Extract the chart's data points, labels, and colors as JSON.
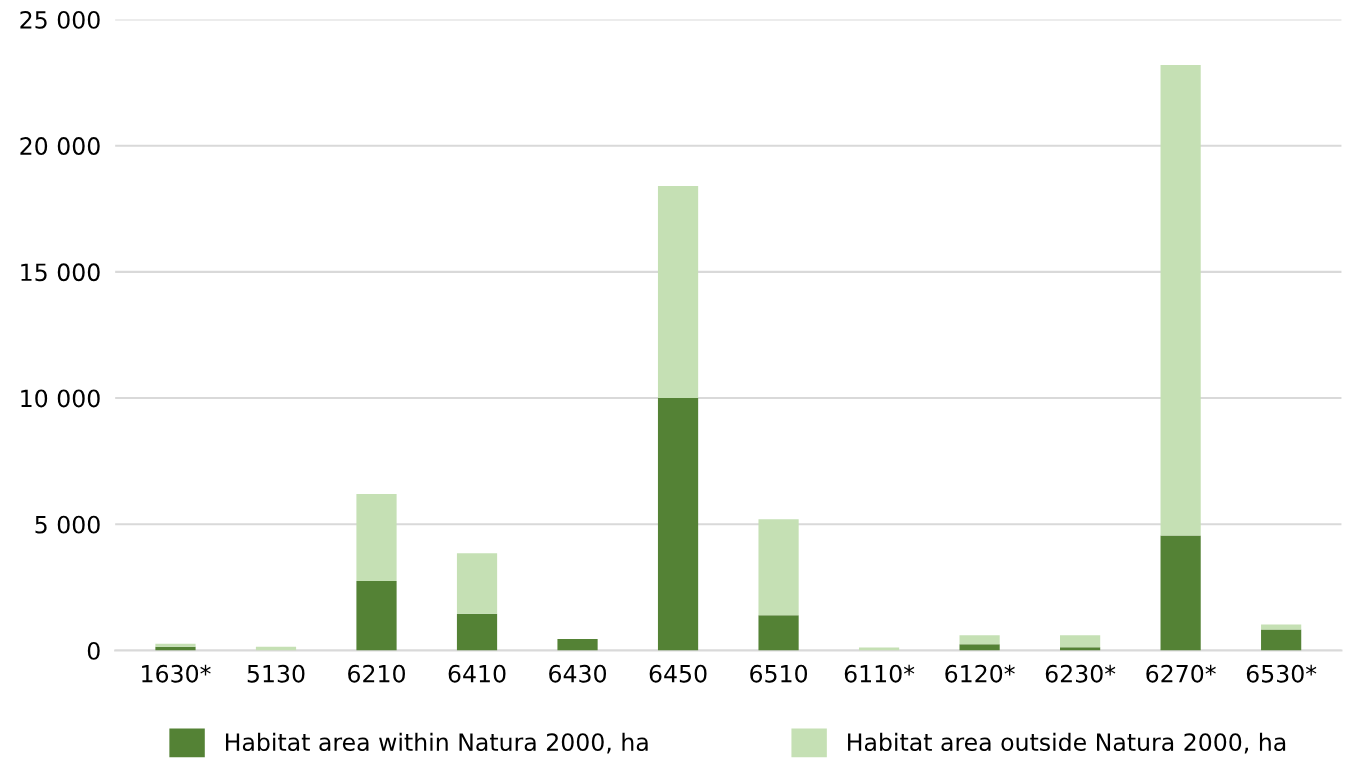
{
  "chart_data": {
    "type": "bar",
    "stacked": true,
    "categories": [
      "1630*",
      "5130",
      "6210",
      "6410",
      "6430",
      "6450",
      "6510",
      "6110*",
      "6120*",
      "6230*",
      "6270*",
      "6530*"
    ],
    "series": [
      {
        "name": "Habitat area within Natura 2000, ha",
        "color": "#548235",
        "values": [
          150,
          0,
          2750,
          1450,
          450,
          10000,
          1400,
          0,
          250,
          130,
          4550,
          830
        ]
      },
      {
        "name": "Habitat area outside Natura 2000, ha",
        "color": "#c5e0b4",
        "values": [
          120,
          150,
          3450,
          2400,
          0,
          8400,
          3800,
          120,
          350,
          470,
          18650,
          200
        ]
      }
    ],
    "ylim": [
      0,
      25000
    ],
    "yticks": [
      {
        "value": 0,
        "label": "0"
      },
      {
        "value": 5000,
        "label": "5 000"
      },
      {
        "value": 10000,
        "label": "10 000"
      },
      {
        "value": 15000,
        "label": "15 000"
      },
      {
        "value": 20000,
        "label": "20 000"
      },
      {
        "value": 25000,
        "label": "25 000"
      }
    ],
    "grid": "y",
    "legend": "bottom"
  }
}
